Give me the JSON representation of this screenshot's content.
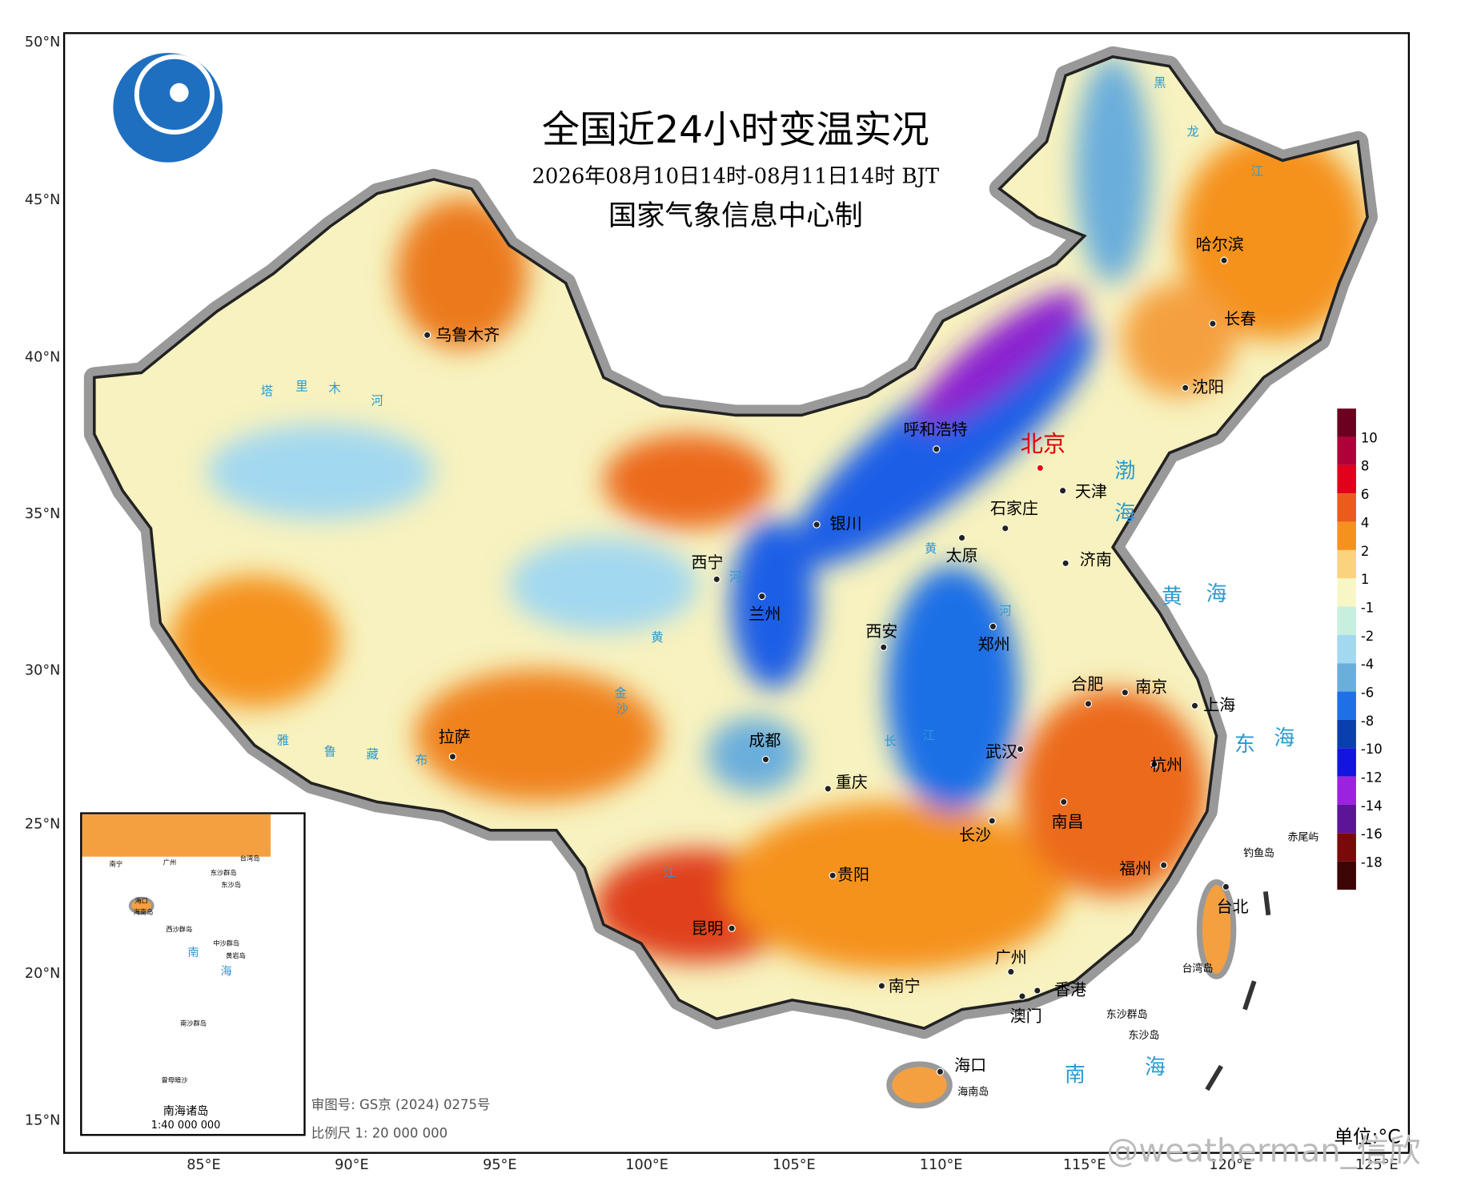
{
  "header": {
    "title": "全国近24小时变温实况",
    "subtitle": "2026年08月10日14时-08月11日14时 BJT",
    "producer": "国家气象信息中心制"
  },
  "axes": {
    "lat_labels": [
      "50°N",
      "45°N",
      "40°N",
      "35°N",
      "30°N",
      "25°N",
      "20°N",
      "15°N"
    ],
    "lon_labels": [
      "85°E",
      "90°E",
      "95°E",
      "100°E",
      "105°E",
      "110°E",
      "115°E",
      "120°E",
      "125°E"
    ]
  },
  "legend": {
    "unit": "单位:°C",
    "labels": [
      10,
      8,
      6,
      4,
      2,
      1,
      -1,
      -2,
      -4,
      -6,
      -8,
      -10,
      -12,
      -14,
      -16,
      -18
    ],
    "colors": [
      "#6b0020",
      "#b0003a",
      "#e2001a",
      "#ec5a1c",
      "#f5921e",
      "#fbd27e",
      "#f7f7c6",
      "#c6efe0",
      "#a2d8f0",
      "#6aaedc",
      "#1f6fe6",
      "#0a3fae",
      "#1414e0",
      "#9b22e0",
      "#5c1596",
      "#7a0a0a",
      "#3d0505"
    ]
  },
  "cities": [
    "乌鲁木齐",
    "呼和浩特",
    "北京",
    "天津",
    "石家庄",
    "银川",
    "太原",
    "济南",
    "西宁",
    "兰州",
    "西安",
    "郑州",
    "合肥",
    "南京",
    "上海",
    "拉萨",
    "成都",
    "重庆",
    "武汉",
    "杭州",
    "长沙",
    "南昌",
    "贵阳",
    "福州",
    "昆明",
    "台北",
    "广州",
    "南宁",
    "香港",
    "澳门",
    "海口",
    "哈尔滨",
    "长春",
    "沈阳"
  ],
  "seas": [
    "渤",
    "海",
    "黄",
    "海",
    "东",
    "海",
    "南",
    "海"
  ],
  "rivers": [
    "黑",
    "龙",
    "江",
    "黄",
    "河",
    "黄",
    "河",
    "长",
    "江",
    "金",
    "沙",
    "江",
    "雅",
    "鲁",
    "藏",
    "布",
    "塔",
    "里",
    "木",
    "河"
  ],
  "islands": [
    "钓鱼岛",
    "赤尾屿",
    "东沙群岛",
    "东沙岛",
    "台湾岛",
    "海南岛"
  ],
  "inset": {
    "title": "南海诸岛",
    "scale": "1:40 000 000",
    "labels": [
      "南宁",
      "广州",
      "台湾岛",
      "东沙群岛",
      "东沙岛",
      "海口",
      "海南岛",
      "西沙群岛",
      "中沙群岛",
      "黄岩岛",
      "南",
      "海",
      "南沙群岛",
      "曾母暗沙"
    ]
  },
  "footer": {
    "review": "审图号: GS京 (2024) 0275号",
    "scale": "比例尺 1: 20 000 000"
  },
  "watermark": "@weatherman_信欣"
}
